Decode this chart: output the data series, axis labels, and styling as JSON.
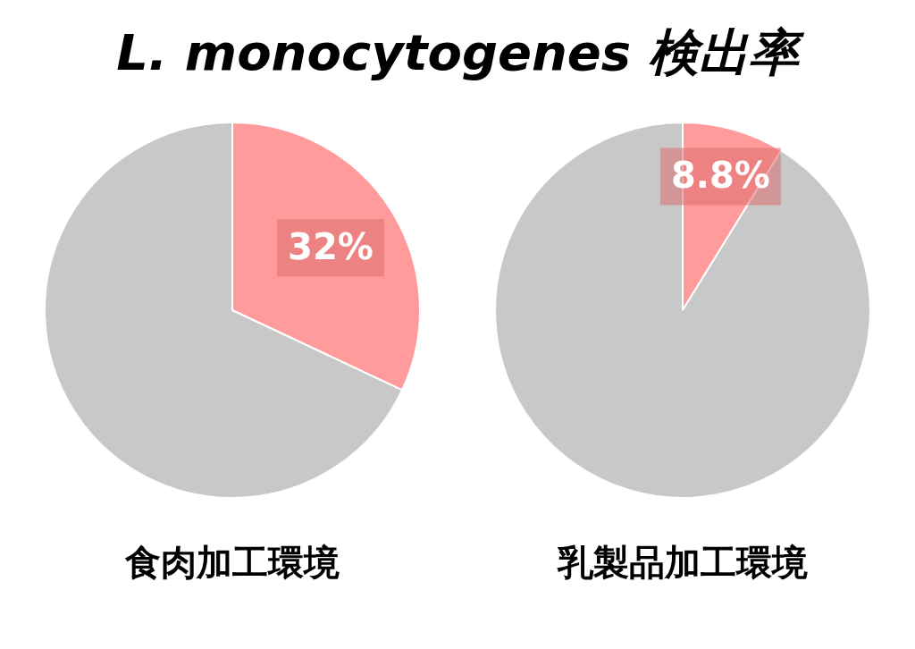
{
  "chart_data": [
    {
      "type": "pie",
      "title": "L. monocytogenes 検出率",
      "xlabel": "食肉加工環境",
      "categories": [
        null,
        null
      ],
      "values": [
        32,
        68
      ],
      "colors": [
        "#ff9b9b",
        "#c8c8c8"
      ],
      "value_labels": [
        "32%",
        null
      ]
    },
    {
      "type": "pie",
      "xlabel": "乳製品加工環境",
      "categories": [
        null,
        null
      ],
      "values": [
        8.8,
        91.2
      ],
      "colors": [
        "#ff9b9b",
        "#c8c8c8"
      ],
      "value_labels": [
        "8.8%",
        null
      ]
    }
  ]
}
